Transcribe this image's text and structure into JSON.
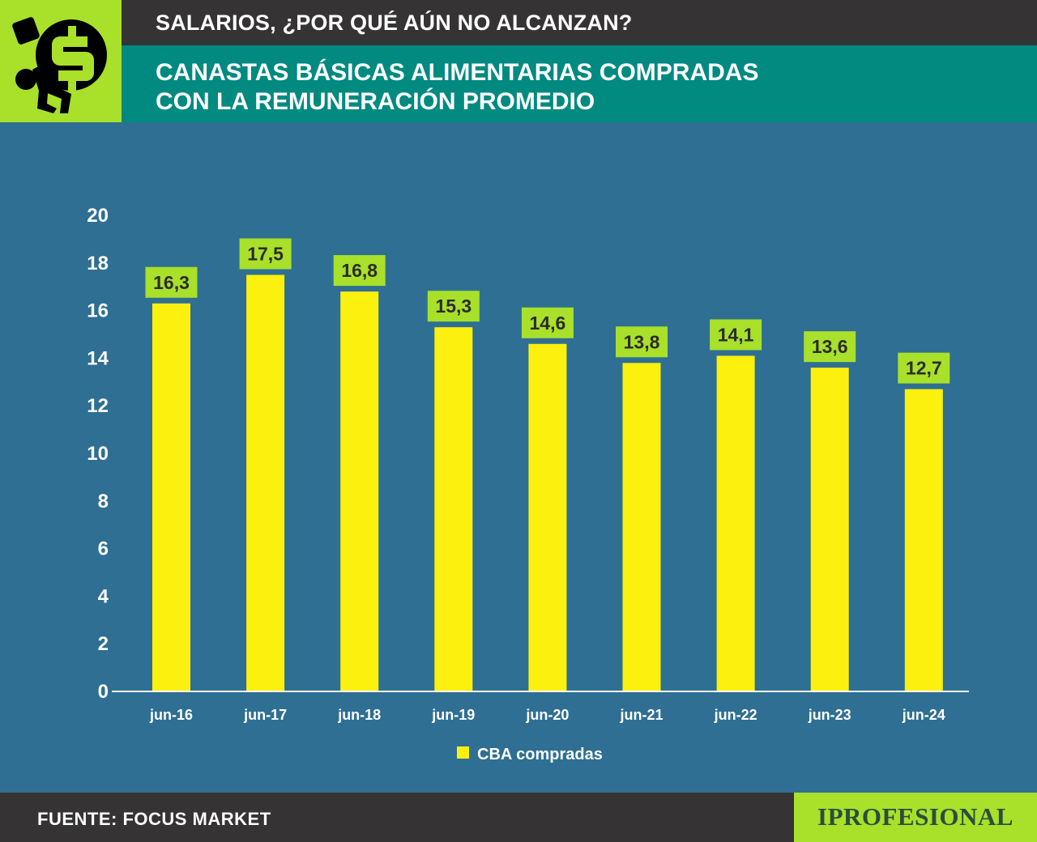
{
  "header": {
    "kicker": "SALARIOS, ¿POR QUÉ AÚN NO ALCANZAN?",
    "title_line1": "CANASTAS BÁSICAS ALIMENTARIAS COMPRADAS",
    "title_line2": "CON LA REMUNERACIÓN PROMEDIO",
    "logo_icon": "person-carrying-dollar-icon"
  },
  "footer": {
    "source": "FUENTE: FOCUS MARKET",
    "brand": "IPROFESIONAL"
  },
  "colors": {
    "background": "#2e6f93",
    "bar": "#fcf00f",
    "label_box": "#a9e02a",
    "header_dark": "#353333",
    "header_teal": "#008a80"
  },
  "chart_data": {
    "type": "bar",
    "categories": [
      "jun-16",
      "jun-17",
      "jun-18",
      "jun-19",
      "jun-20",
      "jun-21",
      "jun-22",
      "jun-23",
      "jun-24"
    ],
    "series": [
      {
        "name": "CBA compradas",
        "values": [
          16.3,
          17.5,
          16.8,
          15.3,
          14.6,
          13.8,
          14.1,
          13.6,
          12.7
        ],
        "labels": [
          "16,3",
          "17,5",
          "16,8",
          "15,3",
          "14,6",
          "13,8",
          "14,1",
          "13,6",
          "12,7"
        ]
      }
    ],
    "yticks": [
      0,
      2,
      4,
      6,
      8,
      10,
      12,
      14,
      16,
      18,
      20
    ],
    "ylim": [
      0,
      20
    ],
    "grid": false,
    "legend": "bottom-center",
    "title": "CANASTAS BÁSICAS ALIMENTARIAS COMPRADAS CON LA REMUNERACIÓN PROMEDIO",
    "xlabel": "",
    "ylabel": ""
  }
}
